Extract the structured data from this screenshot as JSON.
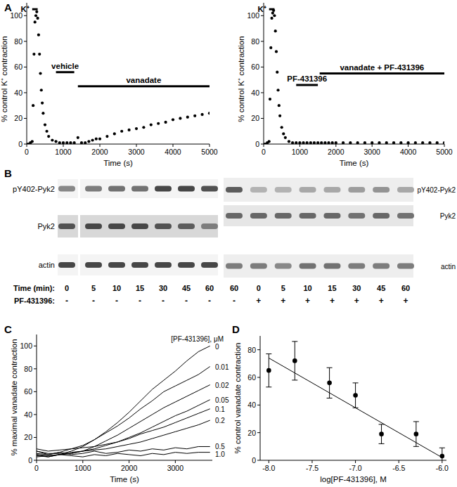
{
  "panels": [
    "A",
    "B",
    "C",
    "D"
  ],
  "chart_data": [
    {
      "type": "scatter",
      "marker": "circle",
      "x": [
        0,
        50,
        100,
        150,
        175,
        200,
        225,
        250,
        275,
        300,
        325,
        350,
        375,
        400,
        425,
        450,
        500,
        550,
        600,
        700,
        800,
        900,
        1000,
        1100,
        1200,
        1300,
        1400,
        1500,
        1600,
        1700,
        1800,
        1900,
        2000,
        2200,
        2400,
        2600,
        2800,
        3000,
        3200,
        3400,
        3600,
        3800,
        4000,
        4200,
        4400,
        4600,
        4800,
        5000
      ],
      "values": [
        0,
        0,
        1,
        2,
        30,
        70,
        95,
        100,
        103,
        98,
        85,
        70,
        55,
        42,
        32,
        24,
        15,
        10,
        6,
        3,
        2,
        1,
        1,
        1,
        1,
        1,
        5,
        1,
        1,
        2,
        3,
        4,
        4,
        6,
        8,
        10,
        11,
        12,
        13,
        15,
        16,
        17,
        19,
        20,
        21,
        22,
        23,
        24
      ],
      "xlim": [
        0,
        5000
      ],
      "ylim": [
        0,
        110
      ],
      "xticks": [
        0,
        1000,
        2000,
        3000,
        4000,
        5000
      ],
      "yticks": [
        0,
        20,
        40,
        60,
        80,
        100
      ],
      "x_label": "Time (s)",
      "y_label": "% control K⁺ contraction",
      "annotations": [
        {
          "text": "K⁺",
          "x": [
            150,
            300
          ],
          "y": 105
        },
        {
          "text": "vehicle",
          "x": [
            800,
            1300
          ],
          "y": 56
        },
        {
          "text": "vanadate",
          "x": [
            1400,
            5000
          ],
          "y": 45
        }
      ]
    },
    {
      "type": "scatter",
      "marker": "circle",
      "x": [
        0,
        50,
        100,
        150,
        175,
        200,
        225,
        250,
        275,
        300,
        325,
        350,
        375,
        400,
        425,
        450,
        500,
        550,
        600,
        700,
        800,
        900,
        1000,
        1100,
        1200,
        1300,
        1400,
        1500,
        1600,
        1700,
        1800,
        1900,
        2000,
        2200,
        2400,
        2600,
        2800,
        3000,
        3200,
        3400,
        3600,
        3800,
        4000,
        4200,
        4400,
        4600,
        4800,
        5000
      ],
      "values": [
        0,
        0,
        1,
        2,
        35,
        75,
        98,
        102,
        104,
        100,
        88,
        72,
        56,
        42,
        30,
        22,
        13,
        8,
        5,
        2,
        1,
        1,
        1,
        1,
        1,
        1,
        1,
        1,
        1,
        1,
        1,
        1,
        1,
        1,
        1,
        1,
        1,
        1,
        1,
        1,
        1,
        1,
        1,
        1,
        1,
        1,
        1,
        1
      ],
      "xlim": [
        0,
        5000
      ],
      "ylim": [
        0,
        110
      ],
      "xticks": [
        0,
        1000,
        2000,
        3000,
        4000,
        5000
      ],
      "yticks": [
        0,
        20,
        40,
        60,
        80,
        100
      ],
      "x_label": "Time (s)",
      "y_label": "% control K⁺ contraction",
      "annotations": [
        {
          "text": "K⁺",
          "x": [
            150,
            300
          ],
          "y": 105
        },
        {
          "text": "PF-431396",
          "x": [
            900,
            1500
          ],
          "y": 46
        },
        {
          "text": "vanadate + PF-431396",
          "x": [
            1550,
            5000
          ],
          "y": 55
        }
      ]
    },
    {
      "type": "line",
      "x": [
        0,
        250,
        500,
        750,
        1000,
        1250,
        1500,
        1750,
        2000,
        2250,
        2500,
        2750,
        3000,
        3250,
        3500,
        3750
      ],
      "series": [
        {
          "name": "0",
          "color": "#000000",
          "values": [
            5,
            3,
            5,
            8,
            12,
            18,
            25,
            33,
            42,
            52,
            62,
            70,
            78,
            87,
            95,
            100
          ]
        },
        {
          "name": "0.01",
          "color": "#000000",
          "values": [
            8,
            5,
            7,
            10,
            13,
            18,
            24,
            30,
            37,
            45,
            52,
            60,
            65,
            70,
            75,
            82
          ]
        },
        {
          "name": "0.02",
          "color": "#000000",
          "values": [
            3,
            4,
            5,
            6,
            8,
            12,
            17,
            22,
            28,
            34,
            40,
            46,
            51,
            56,
            61,
            66
          ]
        },
        {
          "name": "0.05",
          "color": "#000000",
          "values": [
            5,
            4,
            5,
            6,
            8,
            10,
            13,
            16,
            20,
            24,
            29,
            34,
            39,
            43,
            48,
            53
          ]
        },
        {
          "name": "0.1",
          "color": "#000000",
          "values": [
            10,
            8,
            9,
            10,
            11,
            12,
            14,
            16,
            19,
            23,
            26,
            29,
            33,
            37,
            41,
            45
          ]
        },
        {
          "name": "0.2",
          "color": "#000000",
          "values": [
            8,
            6,
            6,
            7,
            8,
            9,
            10,
            12,
            14,
            16,
            19,
            22,
            25,
            28,
            31,
            35
          ]
        },
        {
          "name": "0.5",
          "color": "#000000",
          "values": [
            6,
            5,
            7,
            5,
            6,
            8,
            6,
            7,
            9,
            8,
            10,
            9,
            11,
            10,
            12,
            12
          ]
        },
        {
          "name": "1.0",
          "color": "#000000",
          "values": [
            4,
            3,
            5,
            4,
            3,
            5,
            4,
            6,
            5,
            4,
            6,
            5,
            7,
            6,
            7,
            7
          ]
        }
      ],
      "legend_title": "[PF-431396], μM",
      "legend": "right",
      "xlim": [
        0,
        3800
      ],
      "ylim": [
        0,
        110
      ],
      "xticks": [
        0,
        1000,
        2000,
        3000
      ],
      "yticks": [
        0,
        20,
        40,
        60,
        80,
        100
      ],
      "x_label": "Time (s)",
      "y_label": "% maximal vanadate contraction"
    },
    {
      "type": "scatter",
      "marker": "circle",
      "x": [
        -8,
        -7.7,
        -7.3,
        -7,
        -6.7,
        -6.3,
        -6
      ],
      "values": [
        65,
        72,
        56,
        47,
        19,
        19,
        3
      ],
      "errors": [
        12,
        14,
        11,
        9,
        7,
        9,
        6
      ],
      "fit": {
        "x": [
          -8,
          -6
        ],
        "values": [
          74,
          2
        ]
      },
      "xlim": [
        -8.1,
        -5.95
      ],
      "ylim": [
        0,
        90
      ],
      "xticks": [
        {
          "value": -8,
          "label": "-8.0"
        },
        -7.5,
        {
          "value": -7,
          "label": "-7.0"
        },
        -6.5,
        {
          "value": -6,
          "label": "-6.0"
        }
      ],
      "yticks": [
        0,
        20,
        40,
        60,
        80
      ],
      "x_label": "log[PF-431396], M",
      "y_label": "% control vanadate contraction"
    }
  ],
  "blots": {
    "left": {
      "rows": [
        {
          "label": "pY402-Pyk2",
          "intensity": [
            0.55,
            0.6,
            0.65,
            0.65,
            0.85,
            0.85,
            0.8
          ]
        },
        {
          "label": "Pyk2",
          "intensity": [
            0.8,
            0.85,
            0.85,
            0.85,
            0.8,
            0.75,
            0.6
          ]
        },
        {
          "label": "actin",
          "intensity": [
            0.85,
            0.85,
            0.85,
            0.85,
            0.85,
            0.85,
            0.85
          ]
        }
      ],
      "time_label": "Time (min):",
      "times": [
        "0",
        "5",
        "10",
        "15",
        "30",
        "45",
        "60"
      ],
      "drug_label": "PF-431396:",
      "drug": [
        "-",
        "-",
        "-",
        "-",
        "-",
        "-",
        "-"
      ]
    },
    "right": {
      "rows": [
        {
          "label": "pY402-Pyk2",
          "intensity": [
            0.75,
            0.35,
            0.35,
            0.4,
            0.4,
            0.45,
            0.5,
            0.4
          ]
        },
        {
          "label": "Pyk2",
          "intensity": [
            0.7,
            0.7,
            0.7,
            0.7,
            0.7,
            0.65,
            0.7,
            0.65
          ]
        },
        {
          "label": "actin",
          "intensity": [
            0.6,
            0.6,
            0.55,
            0.65,
            0.65,
            0.6,
            0.6,
            0.6
          ]
        }
      ],
      "times": [
        "60",
        "0",
        "5",
        "10",
        "15",
        "30",
        "45",
        "60"
      ],
      "drug": [
        "-",
        "+",
        "+",
        "+",
        "+",
        "+",
        "+",
        "+"
      ]
    }
  }
}
